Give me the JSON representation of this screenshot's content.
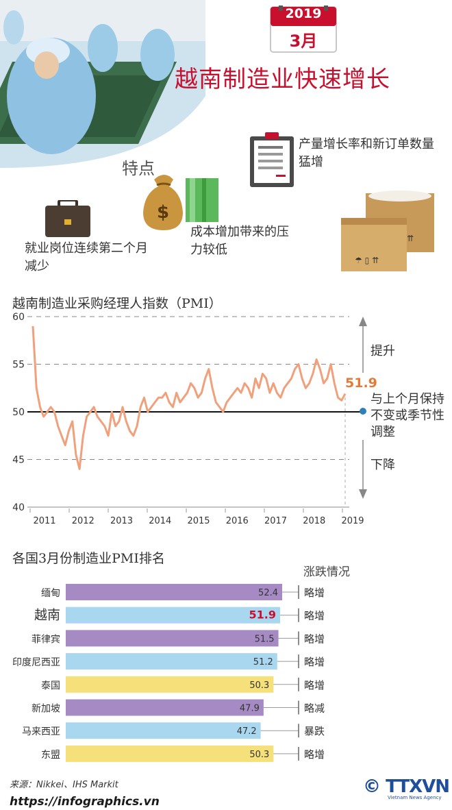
{
  "header": {
    "year": "2019",
    "month": "3月",
    "title": "越南制造业快速增长",
    "features_label": "特点",
    "feature_orders": "产量增长率和新订单数量猛增",
    "feature_cost": "成本增加带来的压力较低",
    "feature_jobs": "就业岗位连续第二个月减少"
  },
  "pmi_chart": {
    "title": "越南制造业采购经理人指数（PMI）",
    "label_up": "提升",
    "label_unchanged": "与上个月保持不变或季节性调整",
    "label_down": "下降",
    "last_value_label": "51.9"
  },
  "ranking": {
    "title": "各国3月份制造业PMI排名",
    "change_header": "涨跌情况"
  },
  "footer": {
    "source": "来源：Nikkei、IHS Markit",
    "site": "https://infographics.vn",
    "agency_logo": "TTXVN",
    "agency_sub": "Vietnam News Agency",
    "copyright": "©"
  },
  "colors": {
    "accent": "#c8102e",
    "line": "#f0a07a",
    "purple": "#a68ac4",
    "blue": "#a9d7ef",
    "yellow": "#f6e07a"
  },
  "chart_data": [
    {
      "type": "line",
      "title": "越南制造业采购经理人指数（PMI）",
      "ylim": [
        40,
        60
      ],
      "yticks": [
        40,
        45,
        50,
        55,
        60
      ],
      "reference_line": 50,
      "x_tick_labels": [
        "2011",
        "2012",
        "2013",
        "2014",
        "2015",
        "2016",
        "2017",
        "2018",
        "2019"
      ],
      "x_start": "2011-03",
      "x_end": "2019-03",
      "series": [
        {
          "values": [
            59.0,
            52.5,
            50.5,
            49.5,
            50.0,
            50.5,
            50.0,
            48.5,
            47.5,
            46.5,
            48.0,
            49.0,
            45.5,
            44.0,
            47.5,
            49.5,
            50.0,
            50.5,
            49.5,
            49.0,
            48.5,
            47.5,
            50.0,
            48.5,
            49.0,
            50.5,
            49.0,
            48.0,
            47.5,
            48.5,
            50.5,
            51.5,
            50.0,
            50.5,
            51.0,
            51.5,
            51.5,
            52.0,
            51.0,
            50.5,
            52.0,
            51.0,
            51.5,
            52.0,
            53.0,
            52.5,
            51.5,
            52.0,
            53.5,
            54.5,
            52.5,
            51.0,
            50.5,
            50.0,
            51.0,
            51.5,
            52.0,
            52.5,
            52.0,
            53.0,
            52.5,
            51.5,
            53.5,
            52.5,
            54.0,
            53.5,
            52.0,
            53.0,
            52.0,
            51.5,
            52.5,
            53.0,
            53.5,
            54.5,
            55.0,
            53.5,
            52.5,
            53.0,
            54.0,
            55.5,
            54.5,
            53.0,
            53.5,
            55.0,
            53.0,
            51.5,
            51.2,
            51.9
          ],
          "last_value": 51.9
        }
      ]
    },
    {
      "type": "bar",
      "orientation": "horizontal",
      "title": "各国3月份制造业PMI排名",
      "categories": [
        "缅甸",
        "越南",
        "菲律宾",
        "印度尼西亚",
        "泰国",
        "新加坡",
        "马来西亚",
        "东盟"
      ],
      "values": [
        52.4,
        51.9,
        51.5,
        51.2,
        50.3,
        47.9,
        47.2,
        50.3
      ],
      "value_labels": [
        "52.4",
        "51.9",
        "51.5",
        "51.2",
        "50.3",
        "47.9",
        "47.2",
        "50.3"
      ],
      "changes": [
        "略增",
        "略增",
        "略增",
        "略增",
        "略增",
        "略减",
        "暴跌",
        "略增"
      ],
      "colors": [
        "#a68ac4",
        "#a9d7ef",
        "#a68ac4",
        "#a9d7ef",
        "#f6e07a",
        "#a68ac4",
        "#a9d7ef",
        "#f6e07a"
      ],
      "highlight_index": 1,
      "change_header": "涨跌情况"
    }
  ]
}
